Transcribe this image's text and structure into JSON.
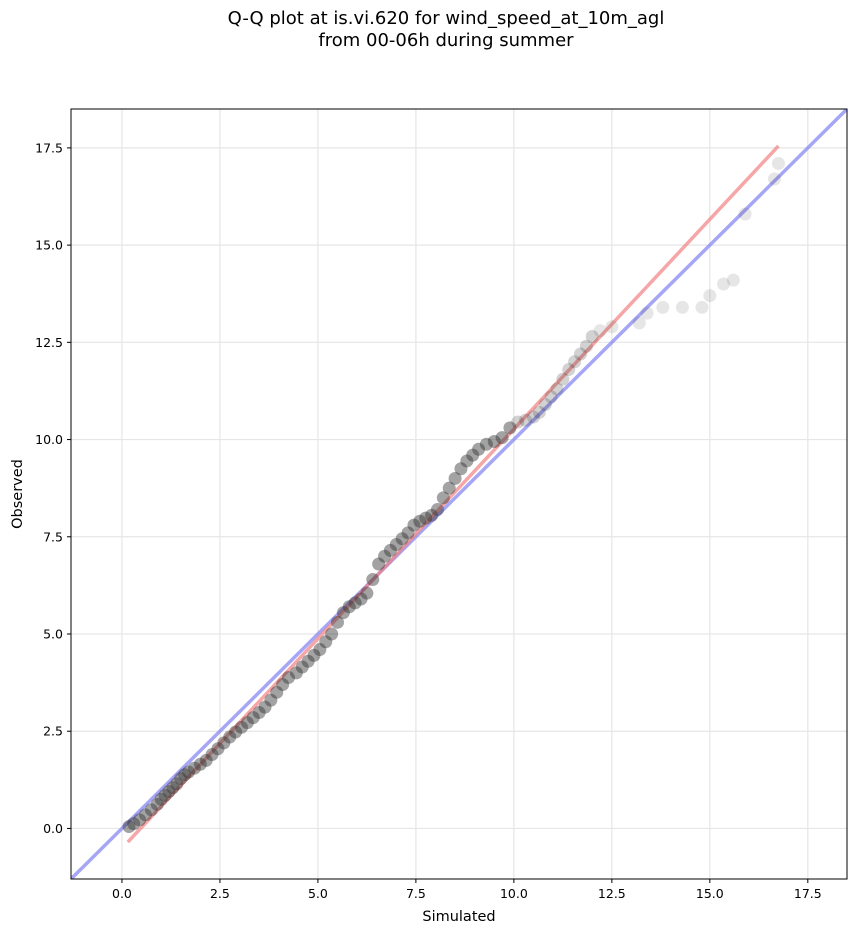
{
  "chart_data": {
    "type": "scatter",
    "title_line1": "Q-Q plot at is.vi.620 for wind_speed_at_10m_agl",
    "title_line2": "from 00-06h during summer",
    "xlabel": "Simulated",
    "ylabel": "Observed",
    "xlim": [
      -1.3,
      18.5
    ],
    "ylim": [
      -1.3,
      18.5
    ],
    "xticks": [
      "0.0",
      "2.5",
      "5.0",
      "7.5",
      "10.0",
      "12.5",
      "15.0",
      "17.5"
    ],
    "yticks": [
      "0.0",
      "2.5",
      "5.0",
      "7.5",
      "10.0",
      "12.5",
      "15.0",
      "17.5"
    ],
    "grid": true,
    "quantile_points": [
      [
        0.18,
        0.05
      ],
      [
        0.3,
        0.12
      ],
      [
        0.45,
        0.22
      ],
      [
        0.6,
        0.35
      ],
      [
        0.75,
        0.48
      ],
      [
        0.9,
        0.62
      ],
      [
        1.0,
        0.75
      ],
      [
        1.1,
        0.85
      ],
      [
        1.2,
        0.95
      ],
      [
        1.3,
        1.05
      ],
      [
        1.4,
        1.15
      ],
      [
        1.5,
        1.28
      ],
      [
        1.6,
        1.38
      ],
      [
        1.7,
        1.45
      ],
      [
        1.85,
        1.55
      ],
      [
        2.0,
        1.65
      ],
      [
        2.15,
        1.75
      ],
      [
        2.3,
        1.9
      ],
      [
        2.45,
        2.05
      ],
      [
        2.6,
        2.2
      ],
      [
        2.75,
        2.35
      ],
      [
        2.9,
        2.48
      ],
      [
        3.05,
        2.6
      ],
      [
        3.2,
        2.72
      ],
      [
        3.35,
        2.85
      ],
      [
        3.5,
        2.98
      ],
      [
        3.65,
        3.12
      ],
      [
        3.8,
        3.3
      ],
      [
        3.95,
        3.5
      ],
      [
        4.1,
        3.7
      ],
      [
        4.25,
        3.88
      ],
      [
        4.45,
        4.0
      ],
      [
        4.6,
        4.15
      ],
      [
        4.75,
        4.3
      ],
      [
        4.9,
        4.45
      ],
      [
        5.05,
        4.6
      ],
      [
        5.2,
        4.8
      ],
      [
        5.35,
        5.0
      ],
      [
        5.5,
        5.3
      ],
      [
        5.65,
        5.55
      ],
      [
        5.8,
        5.7
      ],
      [
        5.95,
        5.8
      ],
      [
        6.1,
        5.9
      ],
      [
        6.25,
        6.05
      ],
      [
        6.4,
        6.4
      ],
      [
        6.55,
        6.8
      ],
      [
        6.7,
        7.0
      ],
      [
        6.85,
        7.15
      ],
      [
        7.0,
        7.3
      ],
      [
        7.15,
        7.45
      ],
      [
        7.3,
        7.6
      ],
      [
        7.45,
        7.8
      ],
      [
        7.6,
        7.9
      ],
      [
        7.75,
        7.98
      ],
      [
        7.9,
        8.05
      ],
      [
        8.05,
        8.2
      ],
      [
        8.2,
        8.5
      ],
      [
        8.35,
        8.75
      ],
      [
        8.5,
        9.0
      ],
      [
        8.65,
        9.25
      ],
      [
        8.8,
        9.45
      ],
      [
        8.95,
        9.6
      ],
      [
        9.1,
        9.75
      ],
      [
        9.3,
        9.88
      ],
      [
        9.5,
        9.95
      ],
      [
        9.7,
        10.05
      ],
      [
        9.9,
        10.3
      ],
      [
        10.1,
        10.45
      ],
      [
        10.3,
        10.5
      ],
      [
        10.5,
        10.58
      ],
      [
        10.65,
        10.7
      ],
      [
        10.8,
        10.9
      ],
      [
        10.95,
        11.1
      ],
      [
        11.1,
        11.3
      ],
      [
        11.25,
        11.55
      ],
      [
        11.4,
        11.8
      ],
      [
        11.55,
        12.0
      ],
      [
        11.7,
        12.2
      ],
      [
        11.85,
        12.4
      ],
      [
        12.0,
        12.65
      ],
      [
        12.2,
        12.8
      ],
      [
        12.5,
        12.9
      ],
      [
        13.2,
        13.0
      ],
      [
        13.4,
        13.25
      ],
      [
        13.8,
        13.4
      ],
      [
        14.3,
        13.4
      ],
      [
        14.8,
        13.4
      ],
      [
        15.0,
        13.7
      ],
      [
        15.35,
        14.0
      ],
      [
        15.6,
        14.1
      ],
      [
        15.9,
        15.8
      ],
      [
        16.65,
        16.7
      ],
      [
        16.75,
        17.1
      ]
    ],
    "fit_line": {
      "color": "#f28080",
      "x": [
        0.15,
        16.75
      ],
      "y": [
        -0.35,
        17.55
      ]
    },
    "identity_line": {
      "color": "#8080f2",
      "x": [
        -1.3,
        18.5
      ],
      "y": [
        -1.3,
        18.5
      ]
    }
  }
}
